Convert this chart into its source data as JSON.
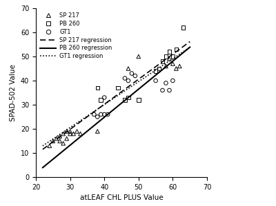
{
  "title": "",
  "xlabel": "atLEAF CHL PLUS Value",
  "ylabel": "SPAD-502 Value",
  "xlim": [
    20,
    70
  ],
  "ylim": [
    0,
    70
  ],
  "xticks": [
    20,
    30,
    40,
    50,
    60,
    70
  ],
  "yticks": [
    0,
    10,
    20,
    30,
    40,
    50,
    60,
    70
  ],
  "sp217_x": [
    24,
    25,
    26,
    27,
    27,
    28,
    28,
    29,
    29,
    30,
    30,
    31,
    32,
    33,
    38,
    47,
    50,
    58,
    59,
    60,
    61,
    62
  ],
  "sp217_y": [
    13,
    15,
    16,
    15,
    17,
    14,
    18,
    16,
    19,
    18,
    19,
    18,
    19,
    18,
    19,
    45,
    50,
    46,
    49,
    47,
    45,
    46
  ],
  "pb260_x": [
    38,
    39,
    44,
    46,
    47,
    50,
    55,
    56,
    57,
    58,
    59,
    60,
    61,
    63
  ],
  "pb260_y": [
    37,
    32,
    37,
    32,
    33,
    32,
    44,
    45,
    48,
    50,
    52,
    50,
    53,
    62
  ],
  "gt1_x": [
    37,
    38,
    39,
    40,
    40,
    41,
    46,
    47,
    48,
    49,
    55,
    57,
    58,
    59,
    60
  ],
  "gt1_y": [
    26,
    25,
    26,
    26,
    33,
    26,
    41,
    40,
    43,
    42,
    40,
    36,
    39,
    36,
    40
  ],
  "sp217_reg": [
    1.0378,
    -11.302
  ],
  "pb260_reg": [
    1.1605,
    -21.566
  ],
  "gt1_reg": [
    0.9505,
    -7.944
  ],
  "color_sp217": "#000000",
  "color_pb260": "#000000",
  "color_gt1": "#000000",
  "marker_sp217": "^",
  "marker_pb260": "s",
  "marker_gt1": "o",
  "marker_size": 4,
  "line_color": "#000000",
  "background_color": "#ffffff",
  "legend_fontsize": 6.0,
  "axis_fontsize": 7.5,
  "tick_fontsize": 7.0
}
